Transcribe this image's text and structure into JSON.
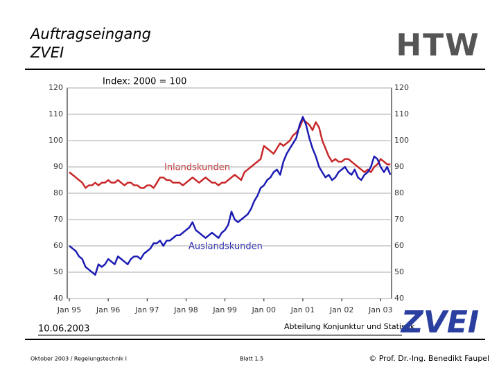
{
  "header": {
    "title_line1": "Auftragseingang",
    "title_line2": "ZVEI",
    "logo": "HTW"
  },
  "chart_data": {
    "type": "line",
    "subtitle": "Index: 2000 = 100",
    "x": [
      "1995-01",
      "1995-02",
      "1995-03",
      "1995-04",
      "1995-05",
      "1995-06",
      "1995-07",
      "1995-08",
      "1995-09",
      "1995-10",
      "1995-11",
      "1995-12",
      "1996-01",
      "1996-02",
      "1996-03",
      "1996-04",
      "1996-05",
      "1996-06",
      "1996-07",
      "1996-08",
      "1996-09",
      "1996-10",
      "1996-11",
      "1996-12",
      "1997-01",
      "1997-02",
      "1997-03",
      "1997-04",
      "1997-05",
      "1997-06",
      "1997-07",
      "1997-08",
      "1997-09",
      "1997-10",
      "1997-11",
      "1997-12",
      "1998-01",
      "1998-02",
      "1998-03",
      "1998-04",
      "1998-05",
      "1998-06",
      "1998-07",
      "1998-08",
      "1998-09",
      "1998-10",
      "1998-11",
      "1998-12",
      "1999-01",
      "1999-02",
      "1999-03",
      "1999-04",
      "1999-05",
      "1999-06",
      "1999-07",
      "1999-08",
      "1999-09",
      "1999-10",
      "1999-11",
      "1999-12",
      "2000-01",
      "2000-02",
      "2000-03",
      "2000-04",
      "2000-05",
      "2000-06",
      "2000-07",
      "2000-08",
      "2000-09",
      "2000-10",
      "2000-11",
      "2000-12",
      "2001-01",
      "2001-02",
      "2001-03",
      "2001-04",
      "2001-05",
      "2001-06",
      "2001-07",
      "2001-08",
      "2001-09",
      "2001-10",
      "2001-11",
      "2001-12",
      "2002-01",
      "2002-02",
      "2002-03",
      "2002-04",
      "2002-05",
      "2002-06",
      "2002-07",
      "2002-08",
      "2002-09",
      "2002-10",
      "2002-11",
      "2002-12",
      "2003-01",
      "2003-02",
      "2003-03",
      "2003-04"
    ],
    "xticks": [
      {
        "value": "1995-01",
        "label": "Jan 95"
      },
      {
        "value": "1996-01",
        "label": "Jan 96"
      },
      {
        "value": "1997-01",
        "label": "Jan 97"
      },
      {
        "value": "1998-01",
        "label": "Jan 98"
      },
      {
        "value": "1999-01",
        "label": "Jan 99"
      },
      {
        "value": "2000-01",
        "label": "Jan 00"
      },
      {
        "value": "2001-01",
        "label": "Jan 01"
      },
      {
        "value": "2002-01",
        "label": "Jan 02"
      },
      {
        "value": "2003-01",
        "label": "Jan 03"
      }
    ],
    "ylim": [
      40,
      120
    ],
    "yticks": [
      40,
      50,
      60,
      70,
      80,
      90,
      100,
      110,
      120
    ],
    "grid": true,
    "series": [
      {
        "name": "Inlandskunden",
        "color": "#c8282a",
        "values": [
          88,
          87,
          86,
          85,
          84,
          82,
          83,
          83,
          84,
          83,
          84,
          84,
          85,
          84,
          84,
          85,
          84,
          83,
          84,
          84,
          83,
          83,
          82,
          82,
          83,
          83,
          82,
          84,
          86,
          86,
          85,
          85,
          84,
          84,
          84,
          83,
          84,
          85,
          86,
          85,
          84,
          85,
          86,
          85,
          84,
          84,
          83,
          84,
          84,
          85,
          86,
          87,
          86,
          85,
          88,
          89,
          90,
          91,
          92,
          93,
          98,
          97,
          96,
          95,
          97,
          99,
          98,
          99,
          100,
          102,
          103,
          105,
          108,
          107,
          106,
          104,
          107,
          105,
          100,
          97,
          94,
          92,
          93,
          92,
          92,
          93,
          93,
          92,
          91,
          90,
          89,
          88,
          89,
          88,
          90,
          91,
          93,
          92,
          91,
          91
        ]
      },
      {
        "name": "Auslandskunden",
        "color": "#1c1cb4",
        "values": [
          60,
          59,
          58,
          56,
          55,
          52,
          51,
          50,
          49,
          53,
          52,
          53,
          55,
          54,
          53,
          56,
          55,
          54,
          53,
          55,
          56,
          56,
          55,
          57,
          58,
          59,
          61,
          61,
          62,
          60,
          62,
          62,
          63,
          64,
          64,
          65,
          66,
          67,
          69,
          66,
          65,
          64,
          63,
          64,
          65,
          64,
          63,
          65,
          66,
          68,
          73,
          70,
          69,
          70,
          71,
          72,
          74,
          77,
          79,
          82,
          83,
          85,
          86,
          88,
          89,
          87,
          92,
          95,
          97,
          99,
          101,
          106,
          109,
          106,
          101,
          97,
          94,
          90,
          88,
          86,
          87,
          85,
          86,
          88,
          89,
          90,
          88,
          87,
          89,
          86,
          85,
          87,
          88,
          90,
          94,
          93,
          90,
          88,
          90,
          87
        ]
      }
    ]
  },
  "footer": {
    "date": "10.06.2003",
    "department": "Abteilung Konjunktur und Statistik",
    "logo": "ZVEI",
    "course": "Oktober 2003 / Regelungstechnik I",
    "page": "Blatt 1.5",
    "author": "© Prof. Dr.-Ing. Benedikt Faupel"
  }
}
